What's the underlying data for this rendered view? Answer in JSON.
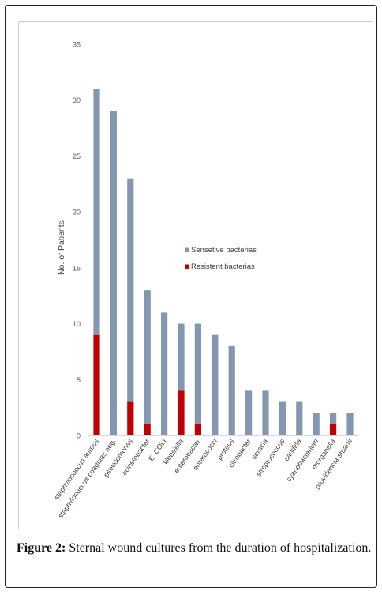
{
  "chart_data": {
    "type": "bar",
    "stacked": true,
    "categories": [
      "staphylococcus aureus",
      "staphylococcus coagulas neg.",
      "pseudomonas",
      "acinetobacter",
      "E. COLI",
      "klebsiella",
      "enterobacter",
      "enterococci",
      "proteus",
      "citrobacter",
      "seracia",
      "streptococcus",
      "candida",
      "cyanobacterium",
      "morganella",
      "providencia stuartii"
    ],
    "totals": [
      31,
      29,
      23,
      13,
      11,
      10,
      10,
      9,
      8,
      4,
      4,
      3,
      3,
      2,
      2,
      2
    ],
    "series": [
      {
        "name": "Sensetive bacterias",
        "values": [
          22,
          29,
          20,
          12,
          11,
          6,
          9,
          9,
          8,
          4,
          4,
          3,
          3,
          2,
          1,
          2
        ],
        "color": "#8497b0"
      },
      {
        "name": "Resistent bacterias",
        "values": [
          9,
          0,
          3,
          1,
          0,
          4,
          1,
          0,
          0,
          0,
          0,
          0,
          0,
          0,
          1,
          0
        ],
        "color": "#c00000"
      }
    ],
    "ylabel": "No. of Patients",
    "xlabel": "",
    "ylim": [
      0,
      35
    ],
    "yticks": [
      "0",
      "5",
      "10",
      "15",
      "20",
      "25",
      "30",
      "35"
    ],
    "grid": false,
    "legend": "center"
  },
  "caption": {
    "label": "Figure 2:",
    "text": " Sternal wound cultures from the duration of hospitalization."
  }
}
